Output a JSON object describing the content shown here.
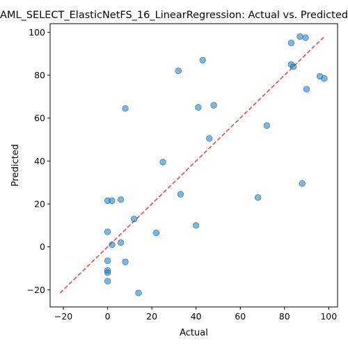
{
  "chart_data": {
    "type": "scatter",
    "title": "AML_SELECT_ElasticNetFS_16_LinearRegression: Actual vs. Predicted",
    "xlabel": "Actual",
    "ylabel": "Predicted",
    "xlim": [
      -26,
      104
    ],
    "ylim": [
      -28,
      104
    ],
    "xticks": [
      -20,
      0,
      20,
      40,
      60,
      80,
      100
    ],
    "yticks": [
      -20,
      0,
      20,
      40,
      60,
      80,
      100
    ],
    "grid": false,
    "point_color": "#1f77b4",
    "reference_line": {
      "from": [
        -21.5,
        -21.5
      ],
      "to": [
        98,
        98
      ],
      "color": "#e8403a",
      "style": "dashed"
    },
    "points": [
      {
        "x": 87,
        "y": 98
      },
      {
        "x": 89.5,
        "y": 97.5
      },
      {
        "x": 83,
        "y": 95
      },
      {
        "x": 43,
        "y": 87
      },
      {
        "x": 83,
        "y": 85
      },
      {
        "x": 84,
        "y": 84
      },
      {
        "x": 32,
        "y": 82
      },
      {
        "x": 96,
        "y": 79.5
      },
      {
        "x": 98,
        "y": 78.5
      },
      {
        "x": 90,
        "y": 73.5
      },
      {
        "x": 48,
        "y": 66
      },
      {
        "x": 41,
        "y": 65
      },
      {
        "x": 8,
        "y": 64.5
      },
      {
        "x": 72,
        "y": 56.5
      },
      {
        "x": 46,
        "y": 50.5
      },
      {
        "x": 25,
        "y": 39.5
      },
      {
        "x": 88,
        "y": 29.5
      },
      {
        "x": 33,
        "y": 24.5
      },
      {
        "x": 68,
        "y": 23
      },
      {
        "x": 6,
        "y": 22
      },
      {
        "x": 0,
        "y": 21.5
      },
      {
        "x": 2,
        "y": 21.5
      },
      {
        "x": 12,
        "y": 13
      },
      {
        "x": 40,
        "y": 10
      },
      {
        "x": 0,
        "y": 7
      },
      {
        "x": 22,
        "y": 6.5
      },
      {
        "x": 6,
        "y": 2
      },
      {
        "x": 2,
        "y": 1
      },
      {
        "x": 0,
        "y": -6.5
      },
      {
        "x": 8,
        "y": -7
      },
      {
        "x": 0,
        "y": -11
      },
      {
        "x": 0,
        "y": -12
      },
      {
        "x": 0,
        "y": -16
      },
      {
        "x": 14,
        "y": -21.5
      }
    ]
  }
}
